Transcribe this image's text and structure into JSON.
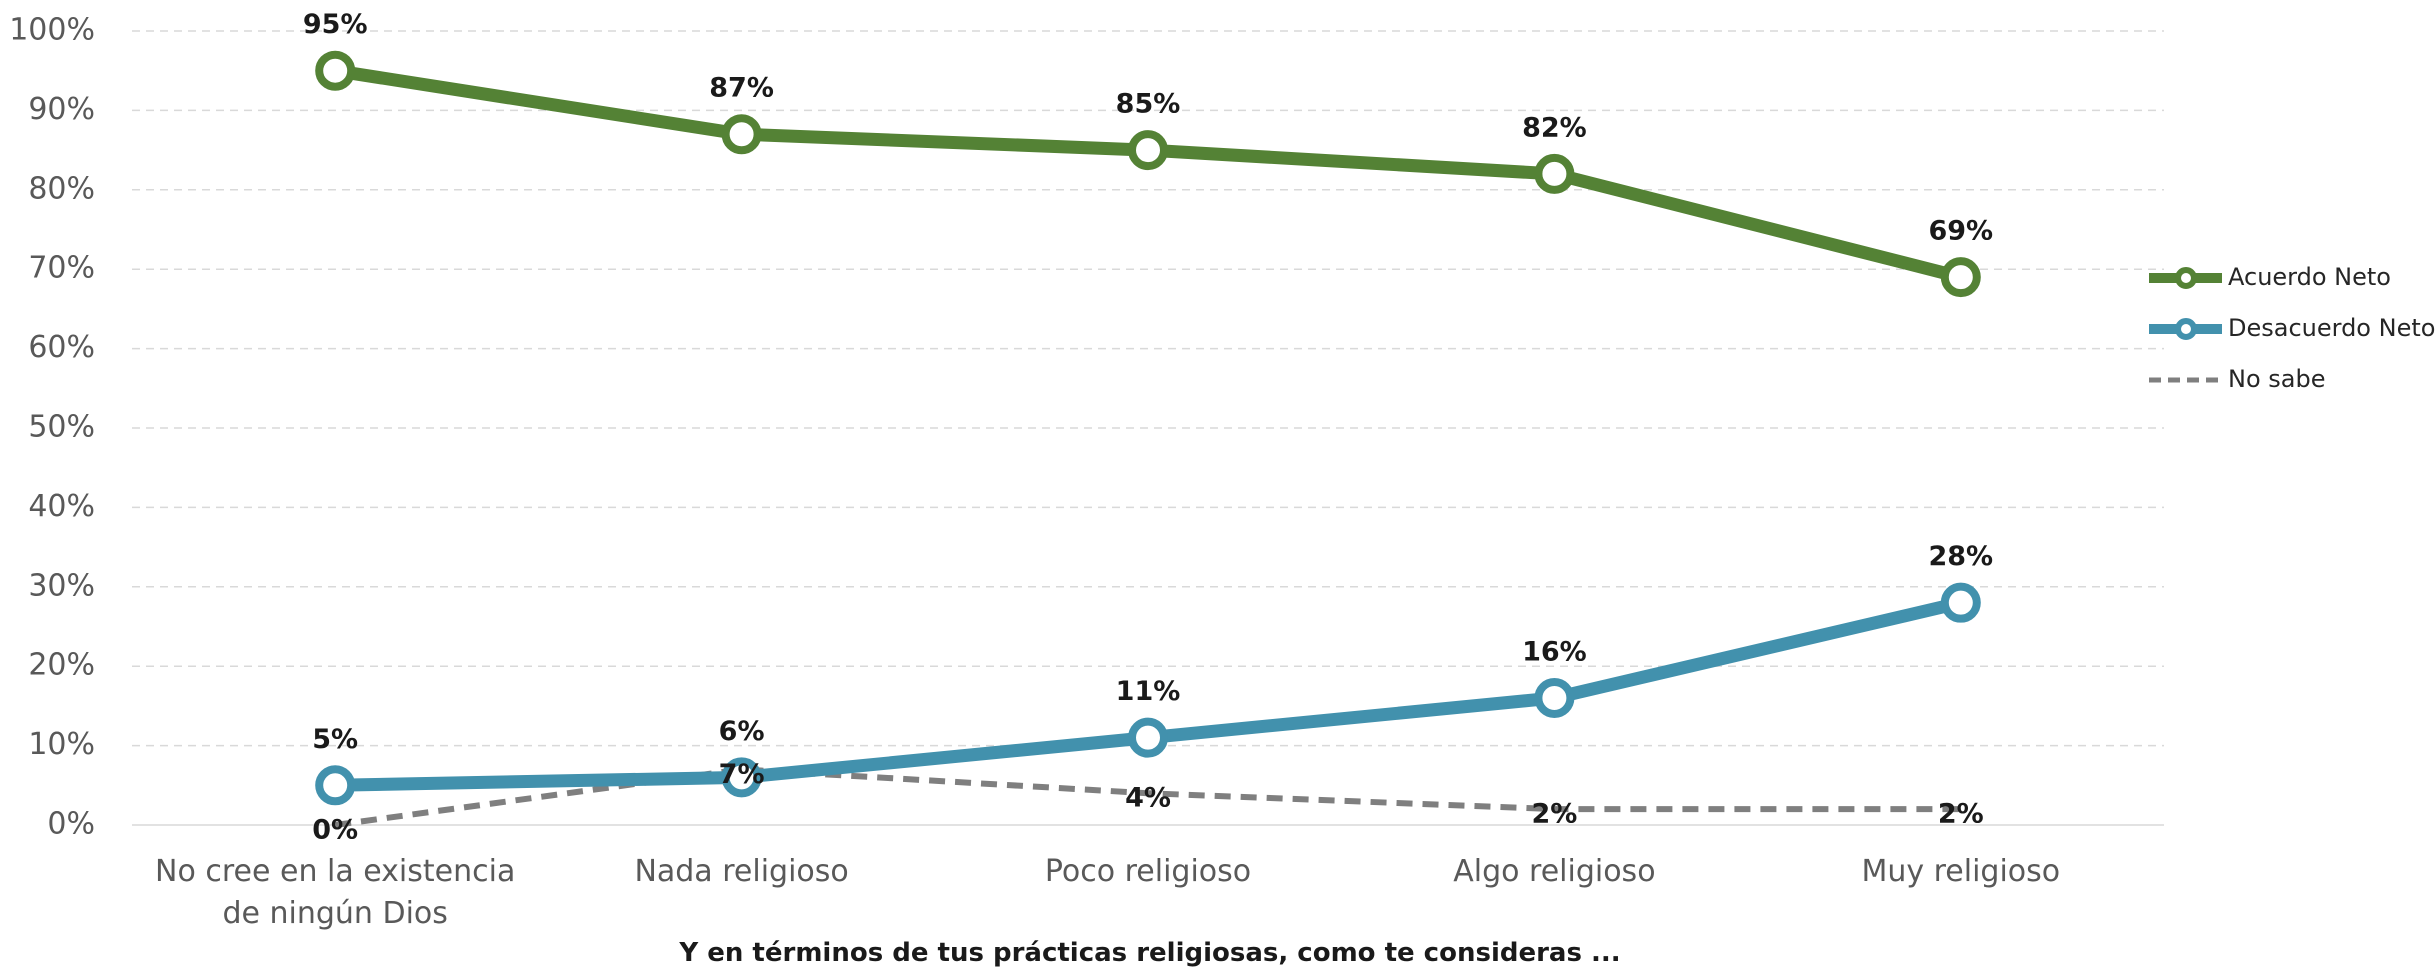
{
  "chart_data": {
    "type": "line",
    "x_label": "Y en términos de tus prácticas religiosas, como te consideras ...",
    "categories": [
      "No cree en la existencia de ningún Dios",
      "Nada religioso",
      "Poco religioso",
      "Algo religioso",
      "Muy religioso"
    ],
    "series": [
      {
        "name": "Acuerdo Neto",
        "color": "#548235",
        "style": "solid",
        "markers": true,
        "values": [
          95,
          87,
          85,
          82,
          69
        ],
        "value_labels": [
          "95%",
          "87%",
          "85%",
          "82%",
          "69%"
        ]
      },
      {
        "name": "Desacuerdo Neto",
        "color": "#4291ad",
        "style": "solid",
        "markers": true,
        "values": [
          5,
          6,
          11,
          16,
          28
        ],
        "value_labels": [
          "5%",
          "6%",
          "11%",
          "16%",
          "28%"
        ]
      },
      {
        "name": "No sabe",
        "color": "#7f7f7f",
        "style": "dashed",
        "markers": false,
        "values": [
          0,
          7,
          4,
          2,
          2
        ],
        "value_labels": [
          "0%",
          "7%",
          "4%",
          "2%",
          "2%"
        ]
      }
    ],
    "ylim": [
      0,
      100
    ],
    "yticks": [
      {
        "value": 0,
        "label": "0%"
      },
      {
        "value": 10,
        "label": "10%"
      },
      {
        "value": 20,
        "label": "20%"
      },
      {
        "value": 30,
        "label": "30%"
      },
      {
        "value": 40,
        "label": "40%"
      },
      {
        "value": 50,
        "label": "50%"
      },
      {
        "value": 60,
        "label": "60%"
      },
      {
        "value": 70,
        "label": "70%"
      },
      {
        "value": 80,
        "label": "80%"
      },
      {
        "value": 90,
        "label": "90%"
      },
      {
        "value": 100,
        "label": "100%"
      }
    ],
    "grid": true,
    "legend": "right"
  }
}
